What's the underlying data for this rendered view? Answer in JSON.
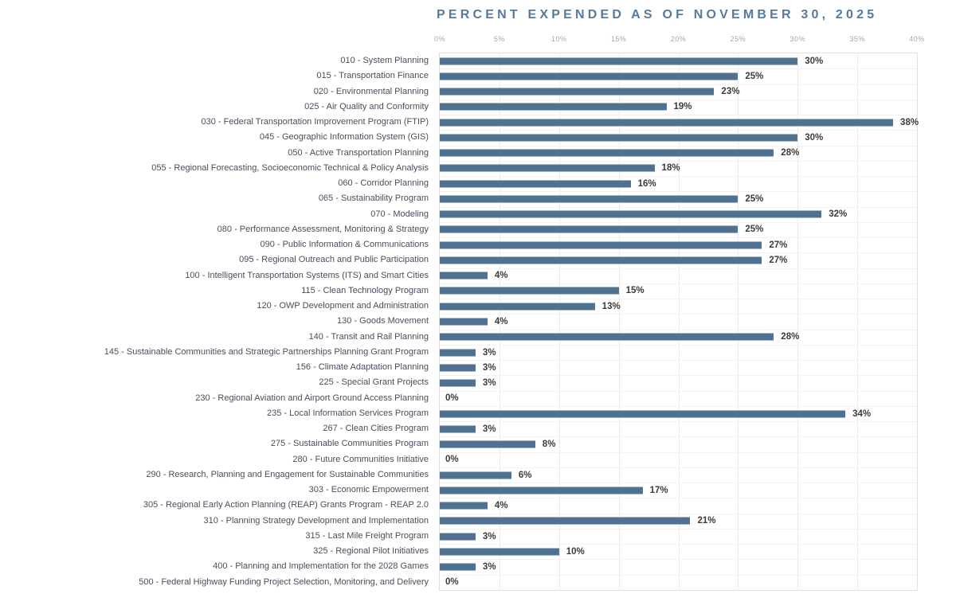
{
  "chart_data": {
    "type": "bar",
    "orientation": "horizontal",
    "title": "PERCENT EXPENDED AS OF NOVEMBER 30, 2025",
    "xlabel": "",
    "ylabel": "",
    "xlim": [
      0,
      40
    ],
    "x_ticks": [
      "0%",
      "5%",
      "10%",
      "15%",
      "20%",
      "25%",
      "30%",
      "35%",
      "40%"
    ],
    "grid": true,
    "legend": "none",
    "bar_color": "#4f7292",
    "title_color": "#557a9c",
    "categories": [
      "010 - System Planning",
      "015 - Transportation Finance",
      "020 - Environmental Planning",
      "025 - Air Quality and Conformity",
      "030 - Federal Transportation Improvement Program (FTIP)",
      "045 - Geographic Information System (GIS)",
      "050 - Active Transportation Planning",
      "055 - Regional Forecasting, Socioeconomic Technical & Policy Analysis",
      "060 - Corridor Planning",
      "065 - Sustainability Program",
      "070 - Modeling",
      "080 - Performance Assessment, Monitoring & Strategy",
      "090 - Public Information & Communications",
      "095 - Regional Outreach and Public Participation",
      "100 - Intelligent Transportation Systems (ITS) and Smart Cities",
      "115 - Clean Technology Program",
      "120 - OWP Development and Administration",
      "130 - Goods Movement",
      "140 - Transit and Rail Planning",
      "145 - Sustainable Communities and Strategic Partnerships Planning Grant Program",
      "156 - Climate Adaptation Planning",
      "225 - Special Grant Projects",
      "230 - Regional Aviation and Airport Ground Access Planning",
      "235 - Local Information Services Program",
      "267 - Clean Cities Program",
      "275 - Sustainable Communities Program",
      "280 - Future Communities Initiative",
      "290 - Research, Planning and Engagement for Sustainable Communities",
      "303 - Economic Empowerment",
      "305 - Regional Early Action Planning (REAP) Grants Program - REAP 2.0",
      "310 - Planning Strategy Development and Implementation",
      "315 - Last Mile Freight Program",
      "325 - Regional Pilot Initiatives",
      "400 - Planning and Implementation for the 2028 Games",
      "500 - Federal Highway Funding Project Selection, Monitoring, and Delivery"
    ],
    "values": [
      30,
      25,
      23,
      19,
      38,
      30,
      28,
      18,
      16,
      25,
      32,
      25,
      27,
      27,
      4,
      15,
      13,
      4,
      28,
      3,
      3,
      3,
      0,
      34,
      3,
      8,
      0,
      6,
      17,
      4,
      21,
      3,
      10,
      3,
      0
    ],
    "value_labels": [
      "30%",
      "25%",
      "23%",
      "19%",
      "38%",
      "30%",
      "28%",
      "18%",
      "16%",
      "25%",
      "32%",
      "25%",
      "27%",
      "27%",
      "4%",
      "15%",
      "13%",
      "4%",
      "28%",
      "3%",
      "3%",
      "3%",
      "0%",
      "34%",
      "3%",
      "8%",
      "0%",
      "6%",
      "17%",
      "4%",
      "21%",
      "3%",
      "10%",
      "3%",
      "0%"
    ]
  }
}
